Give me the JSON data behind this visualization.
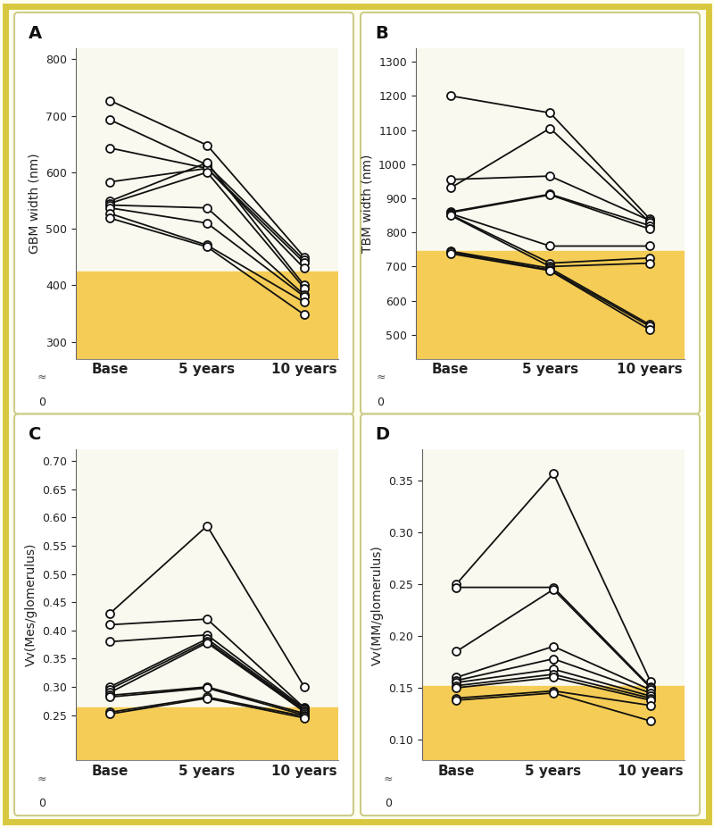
{
  "panel_A": {
    "label": "A",
    "ylabel": "GBM width (nm)",
    "ylim": [
      270,
      820
    ],
    "yticks": [
      300,
      400,
      500,
      600,
      700,
      800
    ],
    "shaded_region": [
      270,
      425
    ],
    "series": [
      [
        727,
        648,
        450
      ],
      [
        693,
        613,
        445
      ],
      [
        643,
        607,
        440
      ],
      [
        583,
        607,
        430
      ],
      [
        549,
        617,
        400
      ],
      [
        545,
        600,
        395
      ],
      [
        542,
        537,
        383
      ],
      [
        537,
        510,
        380
      ],
      [
        527,
        471,
        370
      ],
      [
        519,
        468,
        348
      ]
    ]
  },
  "panel_B": {
    "label": "B",
    "ylabel": "TBM width (nm)",
    "ylim": [
      430,
      1340
    ],
    "yticks": [
      500,
      600,
      700,
      800,
      900,
      1000,
      1100,
      1200,
      1300
    ],
    "shaded_region": [
      430,
      745
    ],
    "series": [
      [
        1200,
        1150,
        840
      ],
      [
        955,
        965,
        835
      ],
      [
        930,
        1105,
        830
      ],
      [
        860,
        912,
        820
      ],
      [
        858,
        910,
        810
      ],
      [
        855,
        760,
        760
      ],
      [
        852,
        710,
        725
      ],
      [
        850,
        700,
        710
      ],
      [
        745,
        695,
        530
      ],
      [
        742,
        690,
        525
      ],
      [
        738,
        688,
        515
      ]
    ]
  },
  "panel_C": {
    "label": "C",
    "ylabel": "Vv(Mes/glomerulus)",
    "ylim": [
      0.17,
      0.72
    ],
    "yticks": [
      0.25,
      0.3,
      0.35,
      0.4,
      0.45,
      0.5,
      0.55,
      0.6,
      0.65,
      0.7
    ],
    "shaded_region": [
      0.17,
      0.263
    ],
    "series": [
      [
        0.43,
        0.585,
        0.3
      ],
      [
        0.41,
        0.42,
        0.263
      ],
      [
        0.38,
        0.392,
        0.262
      ],
      [
        0.3,
        0.385,
        0.26
      ],
      [
        0.296,
        0.381,
        0.258
      ],
      [
        0.29,
        0.378,
        0.256
      ],
      [
        0.285,
        0.3,
        0.253
      ],
      [
        0.282,
        0.298,
        0.25
      ],
      [
        0.255,
        0.282,
        0.248
      ],
      [
        0.252,
        0.28,
        0.245
      ]
    ]
  },
  "panel_D": {
    "label": "D",
    "ylabel": "Vv(MM/glomerulus)",
    "ylim": [
      0.08,
      0.38
    ],
    "yticks": [
      0.1,
      0.15,
      0.2,
      0.25,
      0.3,
      0.35
    ],
    "shaded_region": [
      0.08,
      0.152
    ],
    "series": [
      [
        0.25,
        0.357,
        0.156
      ],
      [
        0.247,
        0.247,
        0.151
      ],
      [
        0.185,
        0.245,
        0.15
      ],
      [
        0.16,
        0.19,
        0.148
      ],
      [
        0.157,
        0.178,
        0.145
      ],
      [
        0.155,
        0.168,
        0.142
      ],
      [
        0.152,
        0.163,
        0.14
      ],
      [
        0.15,
        0.16,
        0.138
      ],
      [
        0.14,
        0.147,
        0.133
      ],
      [
        0.138,
        0.145,
        0.118
      ]
    ]
  },
  "xticklabels": [
    "Base",
    "5 years",
    "10 years"
  ],
  "outer_bg": "#fffff0",
  "panel_bg": "#faf9ef",
  "panel_border": "#d0c060",
  "shaded_color": "#f5cc55",
  "line_color": "#111111",
  "marker_facecolor": "white",
  "marker_edgecolor": "#111111",
  "outer_border_color": "#d8c840",
  "outer_border_lw": 4
}
